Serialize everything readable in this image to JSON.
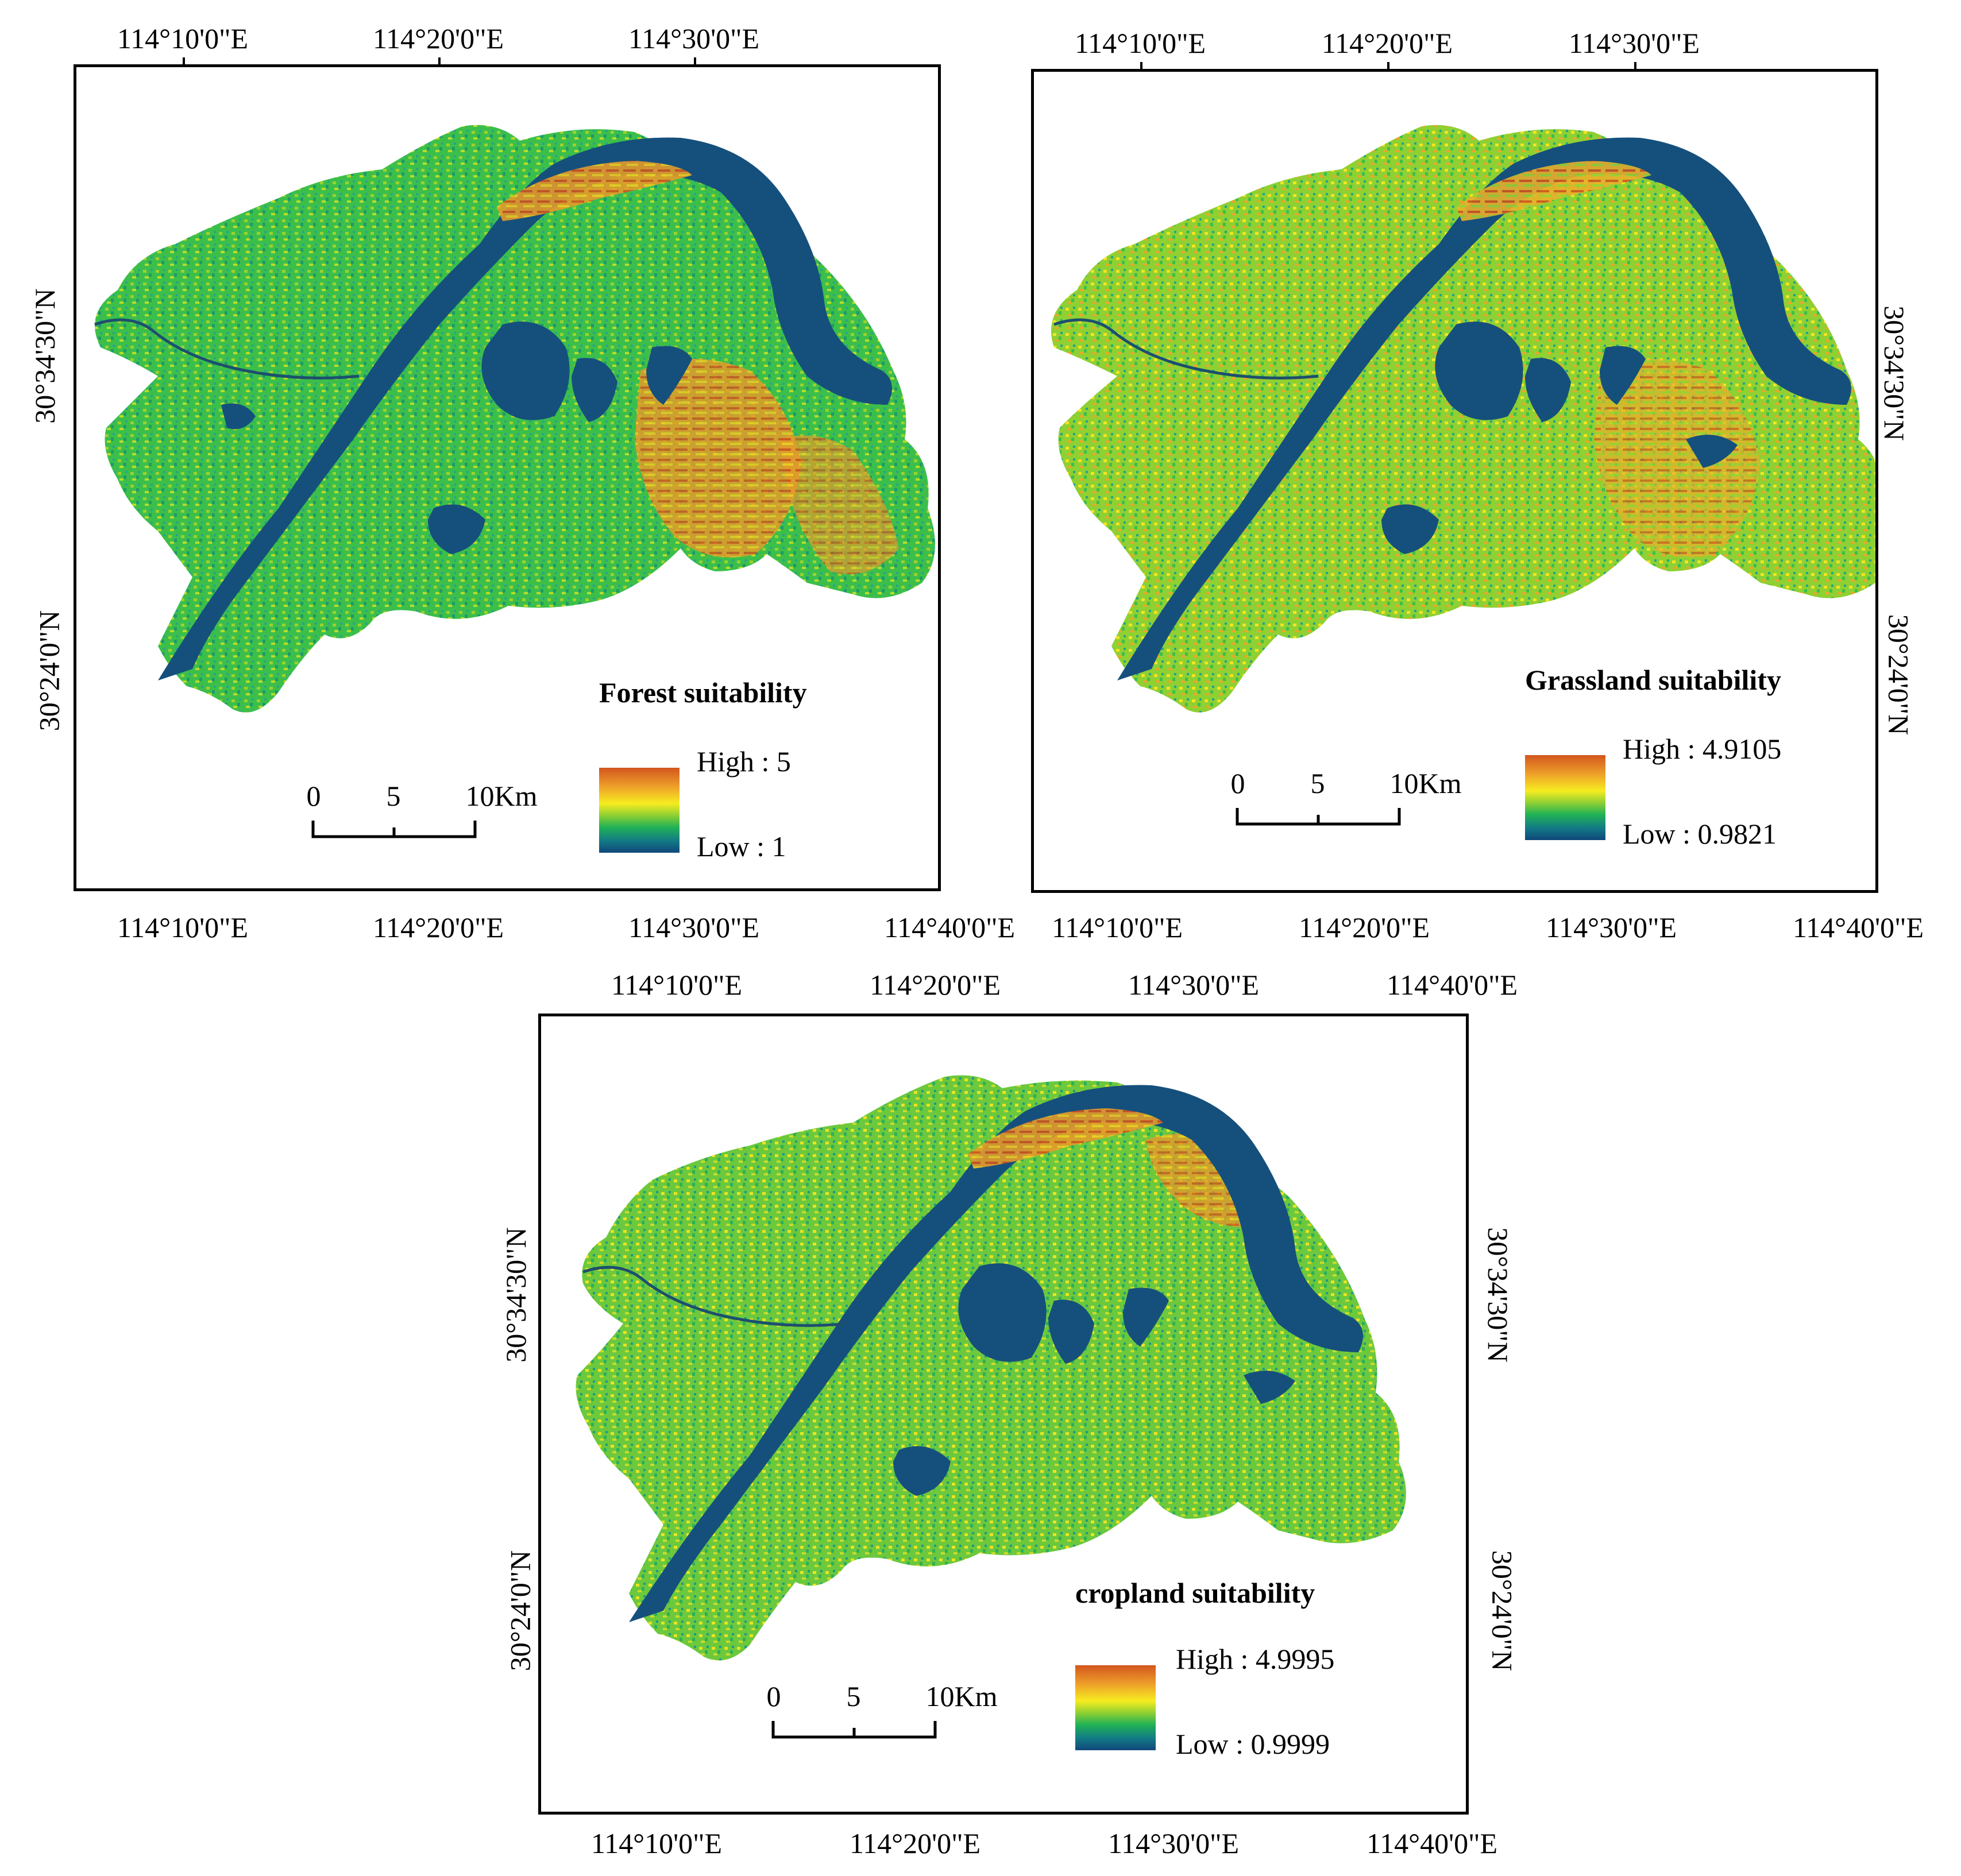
{
  "colors": {
    "water": "#15507c",
    "low": "#10477a",
    "mid_low": "#21b256",
    "mid": "#8fd032",
    "mid_high": "#f7ec20",
    "high": "#d2561e",
    "frame": "#000000"
  },
  "panels": [
    {
      "id": "forest",
      "title": "Forest suitability",
      "legend": {
        "high": "High : 5",
        "low": "Low : 1"
      },
      "top_ticks": [
        "114°10'0\"E",
        "114°20'0\"E",
        "114°30'0\"E"
      ],
      "bottom_ticks": [
        "114°10'0\"E",
        "114°20'0\"E",
        "114°30'0\"E",
        "114°40'0\"E"
      ],
      "left_ticks": [
        "30°34'30\"N",
        "30°24'0\"N"
      ],
      "right_ticks": [],
      "scale": {
        "labels": [
          "0",
          "5",
          "10Km"
        ]
      }
    },
    {
      "id": "grassland",
      "title": "Grassland suitability",
      "legend": {
        "high": "High : 4.9105",
        "low": "Low : 0.9821"
      },
      "top_ticks": [
        "114°10'0\"E",
        "114°20'0\"E",
        "114°30'0\"E"
      ],
      "bottom_ticks": [
        "114°10'0\"E",
        "114°20'0\"E",
        "114°30'0\"E",
        "114°40'0\"E"
      ],
      "left_ticks": [],
      "right_ticks": [
        "30°34'30\"N",
        "30°24'0\"N"
      ],
      "scale": {
        "labels": [
          "0",
          "5",
          "10Km"
        ]
      }
    },
    {
      "id": "cropland",
      "title": "cropland suitability",
      "legend": {
        "high": "High : 4.9995",
        "low": "Low : 0.9999"
      },
      "top_ticks": [
        "114°10'0\"E",
        "114°20'0\"E",
        "114°30'0\"E",
        "114°40'0\"E"
      ],
      "bottom_ticks": [
        "114°10'0\"E",
        "114°20'0\"E",
        "114°30'0\"E",
        "114°40'0\"E"
      ],
      "left_ticks": [
        "30°34'30\"N",
        "30°24'0\"N"
      ],
      "right_ticks": [
        "30°34'30\"N",
        "30°24'0\"N"
      ],
      "scale": {
        "labels": [
          "0",
          "5",
          "10Km"
        ]
      }
    }
  ]
}
